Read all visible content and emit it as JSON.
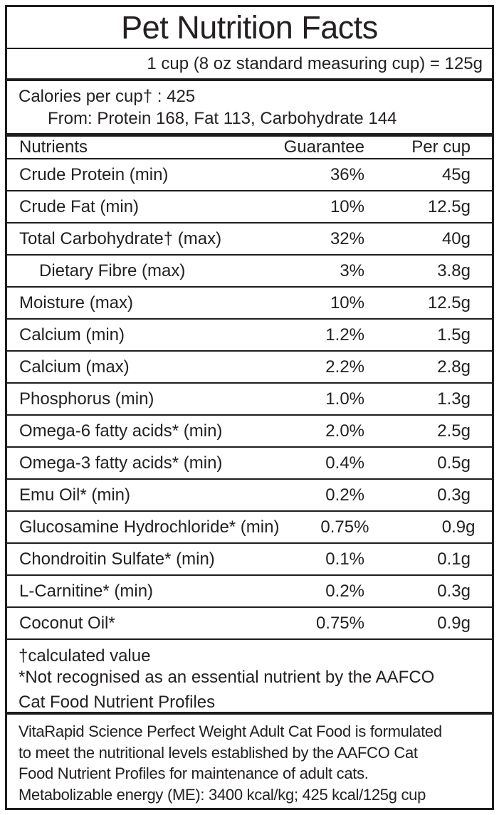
{
  "label": {
    "title": "Pet Nutrition Facts",
    "serving_line": "1 cup (8 oz standard measuring cup) = 125g",
    "calories": {
      "line": "Calories per cup† : 425",
      "from_line": "From: Protein 168, Fat 113, Carbohydrate 144"
    },
    "table": {
      "headers": {
        "nutrient": "Nutrients",
        "guarantee": "Guarantee",
        "per_cup": "Per cup"
      },
      "rows": [
        {
          "nutrient": "Crude Protein (min)",
          "guarantee": "36%",
          "per_cup": "45g",
          "indent": false
        },
        {
          "nutrient": "Crude Fat (min)",
          "guarantee": "10%",
          "per_cup": "12.5g",
          "indent": false
        },
        {
          "nutrient": "Total Carbohydrate† (max)",
          "guarantee": "32%",
          "per_cup": "40g",
          "indent": false
        },
        {
          "nutrient": "Dietary Fibre (max)",
          "guarantee": "3%",
          "per_cup": "3.8g",
          "indent": true
        },
        {
          "nutrient": "Moisture (max)",
          "guarantee": "10%",
          "per_cup": "12.5g",
          "indent": false
        },
        {
          "nutrient": "Calcium (min)",
          "guarantee": "1.2%",
          "per_cup": "1.5g",
          "indent": false
        },
        {
          "nutrient": "Calcium (max)",
          "guarantee": "2.2%",
          "per_cup": "2.8g",
          "indent": false
        },
        {
          "nutrient": "Phosphorus (min)",
          "guarantee": "1.0%",
          "per_cup": "1.3g",
          "indent": false
        },
        {
          "nutrient": "Omega-6 fatty acids* (min)",
          "guarantee": "2.0%",
          "per_cup": "2.5g",
          "indent": false
        },
        {
          "nutrient": "Omega-3 fatty acids* (min)",
          "guarantee": "0.4%",
          "per_cup": "0.5g",
          "indent": false
        },
        {
          "nutrient": "Emu Oil* (min)",
          "guarantee": "0.2%",
          "per_cup": "0.3g",
          "indent": false
        },
        {
          "nutrient": "Glucosamine Hydrochloride* (min)",
          "guarantee": "0.75%",
          "per_cup": "0.9g",
          "indent": false
        },
        {
          "nutrient": "Chondroitin Sulfate* (min)",
          "guarantee": "0.1%",
          "per_cup": "0.1g",
          "indent": false
        },
        {
          "nutrient": "L-Carnitine* (min)",
          "guarantee": "0.2%",
          "per_cup": "0.3g",
          "indent": false
        },
        {
          "nutrient": "Coconut Oil*",
          "guarantee": "0.75%",
          "per_cup": "0.9g",
          "indent": false
        }
      ]
    },
    "footnotes": {
      "line1": "†calculated value",
      "line2": "*Not recognised as an essential nutrient by the AAFCO",
      "line3": "Cat Food Nutrient Profiles"
    },
    "statement": {
      "line1": "VitaRapid Science Perfect Weight Adult Cat Food is formulated",
      "line2": "to meet the nutritional levels established by the AAFCO Cat",
      "line3": "Food Nutrient Profiles for maintenance of adult cats.",
      "energy_line": "Metabolizable energy (ME): 3400 kcal/kg; 425 kcal/125g cup"
    },
    "colors": {
      "text": "#242021",
      "border": "#1d1d1d",
      "background": "#ffffff"
    }
  }
}
